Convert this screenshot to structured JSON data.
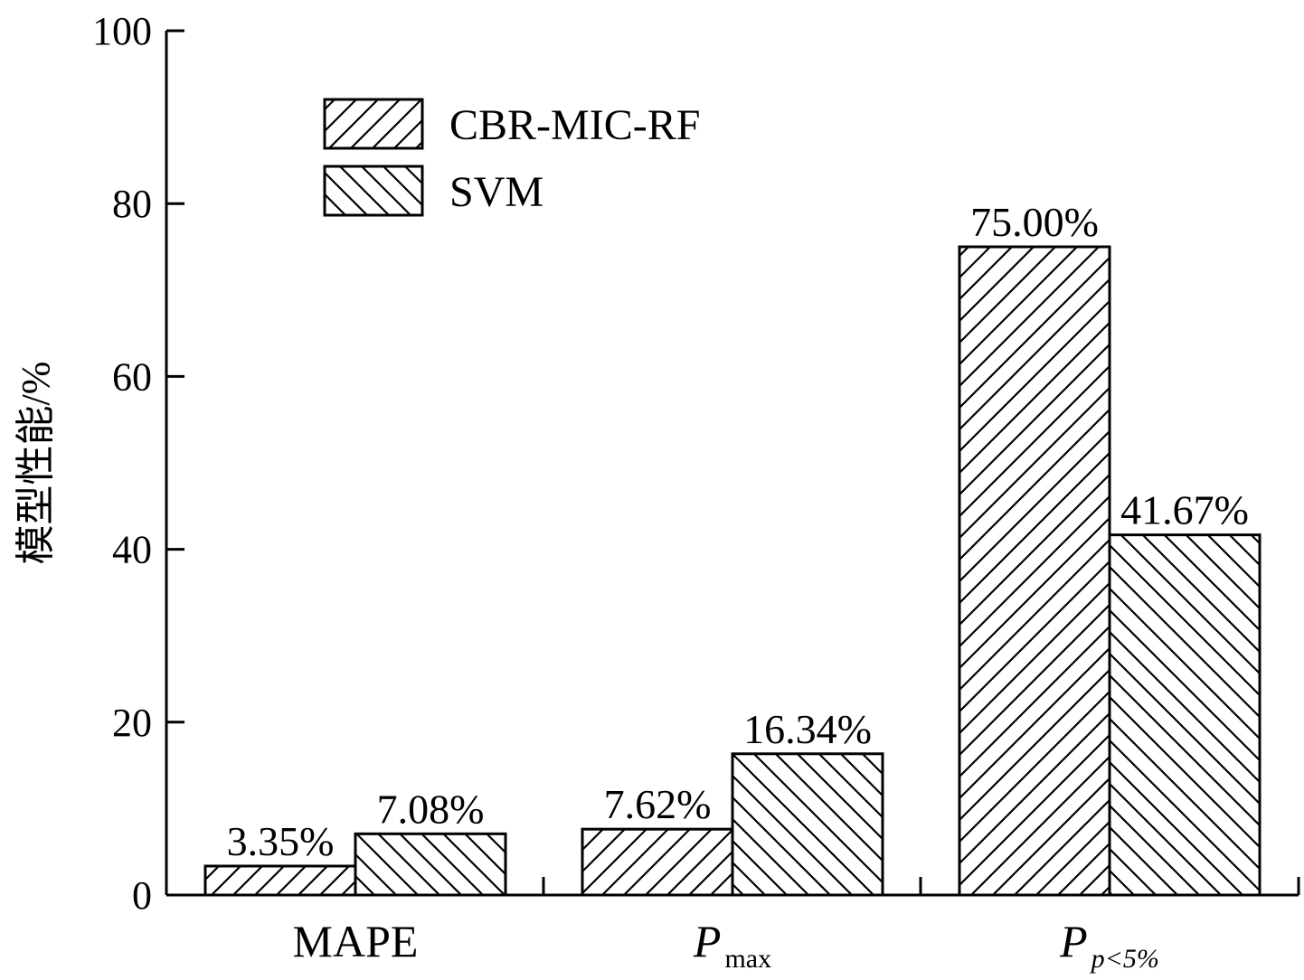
{
  "chart_data": {
    "type": "bar",
    "title": "",
    "xlabel": "",
    "ylabel": "模型性能/%",
    "ylim": [
      0,
      100
    ],
    "yticks": [
      0,
      20,
      40,
      60,
      80,
      100
    ],
    "grid": false,
    "legend_position": "top-left",
    "categories": [
      {
        "main": "MAPE",
        "sub": "",
        "italic": false
      },
      {
        "main": "P",
        "sub": "max",
        "italic": true,
        "sub_italic": false
      },
      {
        "main": "P",
        "sub": "p<5%",
        "italic": true,
        "sub_italic": true
      }
    ],
    "series": [
      {
        "name": "CBR-MIC-RF",
        "pattern": "hatch-forward",
        "values": [
          3.35,
          7.62,
          75.0
        ],
        "labels": [
          "3.35%",
          "7.62%",
          "75.00%"
        ]
      },
      {
        "name": "SVM",
        "pattern": "hatch-backward",
        "values": [
          7.08,
          16.34,
          41.67
        ],
        "labels": [
          "7.08%",
          "16.34%",
          "41.67%"
        ]
      }
    ]
  }
}
